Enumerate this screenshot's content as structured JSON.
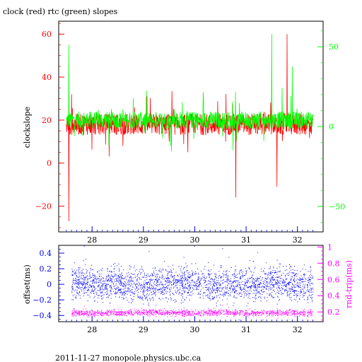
{
  "title": "clock (red) rtc (green) slopes",
  "footer": "2011-11-27  monopole.physics.ubc.ca",
  "colors": {
    "clock": "#ff0000",
    "rtc": "#00ff00",
    "offset": "#0000ff",
    "rndtrip": "#ff00ff",
    "axis": "#000000"
  },
  "chart_data": [
    {
      "type": "line",
      "title": "clock (red) rtc (green) slopes",
      "ylabel": "clockslope",
      "xlim": [
        27.35,
        32.5
      ],
      "ylim": [
        -32,
        66
      ],
      "x_ticks": [
        28,
        29,
        30,
        31,
        32
      ],
      "y_ticks": [
        -20,
        0,
        20,
        40,
        60
      ],
      "y2lim": [
        -66,
        66
      ],
      "y2_ticks": [
        -50,
        0,
        50
      ],
      "grid": false,
      "series": [
        {
          "name": "clock",
          "color": "#ff0000",
          "x": [
            27.5,
            27.55,
            27.6,
            27.7,
            27.8,
            27.9,
            28.0,
            28.1,
            28.2,
            28.3,
            28.4,
            28.5,
            28.6,
            28.7,
            28.8,
            28.9,
            29.0,
            29.1,
            29.2,
            29.3,
            29.4,
            29.5,
            29.6,
            29.7,
            29.8,
            29.9,
            30.0,
            30.1,
            30.2,
            30.3,
            30.4,
            30.5,
            30.6,
            30.7,
            30.8,
            30.9,
            31.0,
            31.1,
            31.2,
            31.3,
            31.4,
            31.5,
            31.6,
            31.7,
            31.8,
            31.9,
            32.0,
            32.1,
            32.2,
            32.3
          ],
          "values": [
            18,
            -27,
            32,
            17,
            18,
            17,
            18,
            18,
            17,
            18,
            18,
            17,
            8,
            18,
            18,
            17,
            18,
            17,
            18,
            17,
            18,
            10,
            17,
            18,
            17,
            18,
            17,
            18,
            17,
            18,
            17,
            18,
            10,
            17,
            -16,
            18,
            17,
            18,
            17,
            18,
            17,
            18,
            -11,
            18,
            60,
            17,
            18,
            17,
            18,
            20
          ]
        },
        {
          "name": "rtc",
          "color": "#00ff00",
          "x": [
            27.5,
            27.55,
            27.6,
            27.7,
            27.8,
            27.9,
            28.0,
            28.1,
            28.2,
            28.3,
            28.4,
            28.5,
            28.6,
            28.7,
            28.8,
            28.9,
            29.0,
            29.1,
            29.2,
            29.3,
            29.4,
            29.5,
            29.6,
            29.7,
            29.8,
            29.9,
            30.0,
            30.1,
            30.2,
            30.3,
            30.4,
            30.5,
            30.6,
            30.7,
            30.8,
            30.9,
            31.0,
            31.1,
            31.2,
            31.3,
            31.4,
            31.5,
            31.6,
            31.7,
            31.8,
            31.9,
            32.0,
            32.1,
            32.2,
            32.3
          ],
          "values": [
            20,
            55,
            18,
            20,
            19,
            20,
            21,
            20,
            19,
            20,
            21,
            20,
            25,
            20,
            19,
            20,
            21,
            20,
            19,
            20,
            21,
            20,
            25,
            20,
            19,
            20,
            21,
            20,
            19,
            20,
            21,
            20,
            19,
            20,
            21,
            20,
            19,
            20,
            21,
            20,
            22,
            60,
            20,
            35,
            19,
            45,
            20,
            21,
            20,
            22
          ]
        }
      ]
    },
    {
      "type": "scatter",
      "ylabel": "offset(ms)",
      "y2label": "rnd-trip(ms)",
      "xlim": [
        27.35,
        32.5
      ],
      "ylim": [
        -0.48,
        0.5
      ],
      "y_ticks": [
        -0.4,
        -0.2,
        0,
        0.2,
        0.4
      ],
      "y_tick_labels": [
        "−0.4",
        "−0.2",
        "0",
        "0.2",
        "0.4"
      ],
      "y2lim": [
        0.08,
        1.02
      ],
      "y2_ticks": [
        0.2,
        0.4,
        0.6,
        0.8,
        1
      ],
      "x_ticks": [
        28,
        29,
        30,
        31,
        32
      ],
      "grid": false,
      "series": [
        {
          "name": "offset",
          "color": "#0000ff",
          "x": [
            27.6,
            27.9,
            28.2,
            28.5,
            28.8,
            29.1,
            29.4,
            29.7,
            30.0,
            30.3,
            30.6,
            30.9,
            31.2,
            31.5,
            31.8,
            32.1,
            32.3
          ],
          "values": [
            0.0,
            0.05,
            -0.02,
            0.03,
            0.0,
            -0.03,
            0.02,
            0.0,
            0.04,
            -0.01,
            0.0,
            0.02,
            -0.02,
            0.03,
            0.0,
            0.01,
            -0.02
          ],
          "spread": 0.16
        },
        {
          "name": "rnd-trip",
          "color": "#ff00ff",
          "x": [
            27.6,
            28.0,
            28.5,
            29.0,
            29.5,
            30.0,
            30.5,
            31.0,
            31.5,
            32.0,
            32.3
          ],
          "values": [
            0.19,
            0.19,
            0.19,
            0.2,
            0.19,
            0.19,
            0.2,
            0.19,
            0.19,
            0.19,
            0.19
          ],
          "spread": 0.03
        }
      ]
    }
  ]
}
